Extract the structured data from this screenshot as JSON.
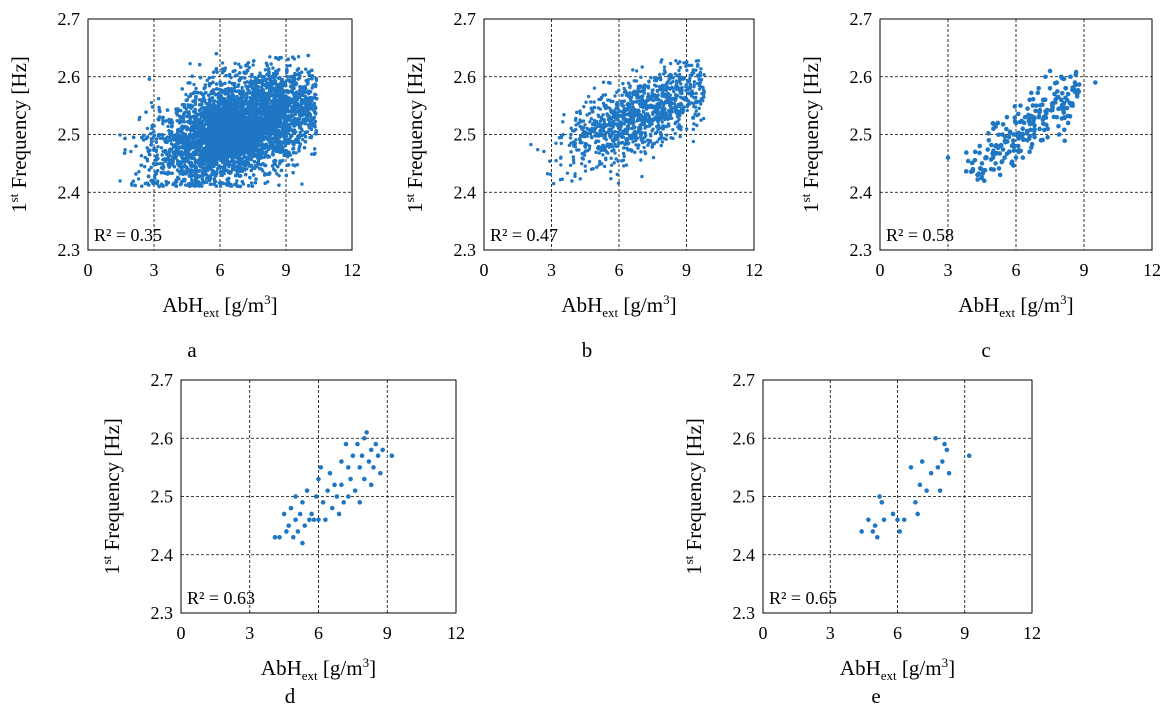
{
  "marker_color": "#1f77c4",
  "chart_data": [
    {
      "type": "scatter",
      "panel_label": "a",
      "xlabel_main": "AbH",
      "xlabel_sub": "ext",
      "xlabel_unit": " [g/m",
      "xlabel_sup": "3",
      "xlabel_end": "]",
      "ylabel_pre": "1",
      "ylabel_sup": "st",
      "ylabel_main": " Frequency [Hz]",
      "xlim": [
        0,
        12
      ],
      "ylim": [
        2.3,
        2.7
      ],
      "xticks": [
        "0",
        "3",
        "6",
        "9",
        "12"
      ],
      "yticks": [
        "2.3",
        "2.4",
        "2.5",
        "2.6",
        "2.7"
      ],
      "grid": true,
      "r2_label": "R² = 0.35",
      "cloud": {
        "n": 9000,
        "xmin": 1.4,
        "xmax": 10.4,
        "y_at_xmin": 2.45,
        "y_at_xmax": 2.55,
        "y_spread": 0.09,
        "ymin": 2.41,
        "ymax": 2.64,
        "x_mean": 6.8,
        "x_sd": 1.7
      }
    },
    {
      "type": "scatter",
      "panel_label": "b",
      "xlabel_main": "AbH",
      "xlabel_sub": "ext",
      "xlabel_unit": " [g/m",
      "xlabel_sup": "3",
      "xlabel_end": "]",
      "ylabel_pre": "1",
      "ylabel_sup": "st",
      "ylabel_main": " Frequency [Hz]",
      "xlim": [
        0,
        12
      ],
      "ylim": [
        2.3,
        2.7
      ],
      "xticks": [
        "0",
        "3",
        "6",
        "9",
        "12"
      ],
      "yticks": [
        "2.3",
        "2.4",
        "2.5",
        "2.6",
        "2.7"
      ],
      "grid": true,
      "r2_label": "R² = 0.47",
      "cloud": {
        "n": 1100,
        "xmin": 1.8,
        "xmax": 9.8,
        "y_at_xmin": 2.45,
        "y_at_xmax": 2.58,
        "y_spread": 0.07,
        "ymin": 2.41,
        "ymax": 2.63,
        "x_mean": 6.9,
        "x_sd": 1.6
      }
    },
    {
      "type": "scatter",
      "panel_label": "c",
      "xlabel_main": "AbH",
      "xlabel_sub": "ext",
      "xlabel_unit": " [g/m",
      "xlabel_sup": "3",
      "xlabel_end": "]",
      "ylabel_pre": "1",
      "ylabel_sup": "st",
      "ylabel_main": " Frequency [Hz]",
      "xlim": [
        0,
        12
      ],
      "ylim": [
        2.3,
        2.7
      ],
      "xticks": [
        "0",
        "3",
        "6",
        "9",
        "12"
      ],
      "yticks": [
        "2.3",
        "2.4",
        "2.5",
        "2.6",
        "2.7"
      ],
      "grid": true,
      "r2_label": "R² = 0.58",
      "points": [
        [
          3.0,
          2.46
        ],
        [
          4.1,
          2.44
        ],
        [
          4.2,
          2.47
        ],
        [
          4.3,
          2.43
        ],
        [
          4.4,
          2.48
        ],
        [
          4.5,
          2.45
        ],
        [
          4.6,
          2.42
        ],
        [
          4.7,
          2.46
        ],
        [
          4.8,
          2.49
        ],
        [
          4.9,
          2.44
        ],
        [
          5.0,
          2.47
        ],
        [
          5.0,
          2.51
        ],
        [
          5.1,
          2.45
        ],
        [
          5.2,
          2.52
        ],
        [
          5.3,
          2.48
        ],
        [
          5.3,
          2.43
        ],
        [
          5.4,
          2.5
        ],
        [
          5.5,
          2.46
        ],
        [
          5.6,
          2.53
        ],
        [
          5.7,
          2.47
        ],
        [
          5.8,
          2.45
        ],
        [
          5.9,
          2.5
        ],
        [
          6.0,
          2.46
        ],
        [
          6.0,
          2.52
        ],
        [
          6.1,
          2.48
        ],
        [
          6.2,
          2.55
        ],
        [
          6.3,
          2.46
        ],
        [
          6.3,
          2.5
        ],
        [
          6.4,
          2.53
        ],
        [
          6.5,
          2.49
        ],
        [
          6.6,
          2.47
        ],
        [
          6.6,
          2.56
        ],
        [
          6.7,
          2.52
        ],
        [
          6.8,
          2.5
        ],
        [
          6.9,
          2.55
        ],
        [
          7.0,
          2.58
        ],
        [
          7.0,
          2.53
        ],
        [
          7.1,
          2.49
        ],
        [
          7.2,
          2.56
        ],
        [
          7.3,
          2.6
        ],
        [
          7.3,
          2.54
        ],
        [
          7.4,
          2.51
        ],
        [
          7.5,
          2.58
        ],
        [
          7.5,
          2.61
        ],
        [
          7.6,
          2.55
        ],
        [
          7.7,
          2.57
        ],
        [
          7.8,
          2.53
        ],
        [
          7.8,
          2.59
        ],
        [
          7.9,
          2.5
        ],
        [
          8.0,
          2.56
        ],
        [
          8.0,
          2.6
        ],
        [
          8.1,
          2.54
        ],
        [
          8.2,
          2.58
        ],
        [
          8.3,
          2.52
        ],
        [
          8.3,
          2.57
        ],
        [
          8.4,
          2.6
        ],
        [
          8.5,
          2.55
        ],
        [
          8.6,
          2.59
        ],
        [
          8.7,
          2.57
        ],
        [
          9.5,
          2.59
        ]
      ],
      "cloud": {
        "n": 180,
        "xmin": 3.8,
        "xmax": 8.9,
        "y_at_xmin": 2.44,
        "y_at_xmax": 2.58,
        "y_spread": 0.05,
        "ymin": 2.42,
        "ymax": 2.615,
        "x_mean": 6.6,
        "x_sd": 1.4
      }
    },
    {
      "type": "scatter",
      "panel_label": "d",
      "xlabel_main": "AbH",
      "xlabel_sub": "ext",
      "xlabel_unit": " [g/m",
      "xlabel_sup": "3",
      "xlabel_end": "]",
      "ylabel_pre": "1",
      "ylabel_sup": "st",
      "ylabel_main": " Frequency [Hz]",
      "xlim": [
        0,
        12
      ],
      "ylim": [
        2.3,
        2.7
      ],
      "xticks": [
        "0",
        "3",
        "6",
        "9",
        "12"
      ],
      "yticks": [
        "2.3",
        "2.4",
        "2.5",
        "2.6",
        "2.7"
      ],
      "grid": true,
      "r2_label": "R² = 0.63",
      "points": [
        [
          4.1,
          2.43
        ],
        [
          4.3,
          2.43
        ],
        [
          4.5,
          2.47
        ],
        [
          4.6,
          2.44
        ],
        [
          4.7,
          2.45
        ],
        [
          4.8,
          2.48
        ],
        [
          4.9,
          2.43
        ],
        [
          5.0,
          2.5
        ],
        [
          5.0,
          2.46
        ],
        [
          5.1,
          2.44
        ],
        [
          5.2,
          2.47
        ],
        [
          5.3,
          2.49
        ],
        [
          5.3,
          2.42
        ],
        [
          5.4,
          2.45
        ],
        [
          5.5,
          2.51
        ],
        [
          5.6,
          2.46
        ],
        [
          5.7,
          2.47
        ],
        [
          5.8,
          2.46
        ],
        [
          5.9,
          2.5
        ],
        [
          6.0,
          2.46
        ],
        [
          6.0,
          2.53
        ],
        [
          6.1,
          2.55
        ],
        [
          6.2,
          2.49
        ],
        [
          6.3,
          2.46
        ],
        [
          6.4,
          2.51
        ],
        [
          6.5,
          2.54
        ],
        [
          6.6,
          2.48
        ],
        [
          6.7,
          2.52
        ],
        [
          6.8,
          2.5
        ],
        [
          6.9,
          2.47
        ],
        [
          7.0,
          2.56
        ],
        [
          7.0,
          2.52
        ],
        [
          7.1,
          2.49
        ],
        [
          7.2,
          2.59
        ],
        [
          7.3,
          2.55
        ],
        [
          7.3,
          2.5
        ],
        [
          7.4,
          2.53
        ],
        [
          7.5,
          2.57
        ],
        [
          7.6,
          2.51
        ],
        [
          7.7,
          2.59
        ],
        [
          7.8,
          2.55
        ],
        [
          7.8,
          2.49
        ],
        [
          7.9,
          2.57
        ],
        [
          8.0,
          2.53
        ],
        [
          8.0,
          2.6
        ],
        [
          8.1,
          2.61
        ],
        [
          8.2,
          2.56
        ],
        [
          8.3,
          2.52
        ],
        [
          8.3,
          2.58
        ],
        [
          8.4,
          2.55
        ],
        [
          8.5,
          2.59
        ],
        [
          8.6,
          2.57
        ],
        [
          8.7,
          2.54
        ],
        [
          8.8,
          2.58
        ],
        [
          9.2,
          2.57
        ]
      ]
    },
    {
      "type": "scatter",
      "panel_label": "e",
      "xlabel_main": "AbH",
      "xlabel_sub": "ext",
      "xlabel_unit": " [g/m",
      "xlabel_sup": "3",
      "xlabel_end": "]",
      "ylabel_pre": "1",
      "ylabel_sup": "st",
      "ylabel_main": " Frequency [Hz]",
      "xlim": [
        0,
        12
      ],
      "ylim": [
        2.3,
        2.7
      ],
      "xticks": [
        "0",
        "3",
        "6",
        "9",
        "12"
      ],
      "yticks": [
        "2.3",
        "2.4",
        "2.5",
        "2.6",
        "2.7"
      ],
      "grid": true,
      "r2_label": "R² = 0.65",
      "points": [
        [
          4.4,
          2.44
        ],
        [
          4.7,
          2.46
        ],
        [
          4.9,
          2.44
        ],
        [
          5.0,
          2.45
        ],
        [
          5.1,
          2.43
        ],
        [
          5.2,
          2.5
        ],
        [
          5.3,
          2.49
        ],
        [
          5.4,
          2.46
        ],
        [
          5.8,
          2.47
        ],
        [
          6.0,
          2.46
        ],
        [
          6.1,
          2.44
        ],
        [
          6.3,
          2.46
        ],
        [
          6.6,
          2.55
        ],
        [
          6.8,
          2.49
        ],
        [
          6.9,
          2.47
        ],
        [
          7.0,
          2.52
        ],
        [
          7.1,
          2.56
        ],
        [
          7.3,
          2.51
        ],
        [
          7.5,
          2.54
        ],
        [
          7.7,
          2.6
        ],
        [
          7.8,
          2.55
        ],
        [
          7.9,
          2.51
        ],
        [
          8.0,
          2.56
        ],
        [
          8.1,
          2.59
        ],
        [
          8.2,
          2.58
        ],
        [
          8.3,
          2.54
        ],
        [
          9.2,
          2.57
        ]
      ]
    }
  ]
}
